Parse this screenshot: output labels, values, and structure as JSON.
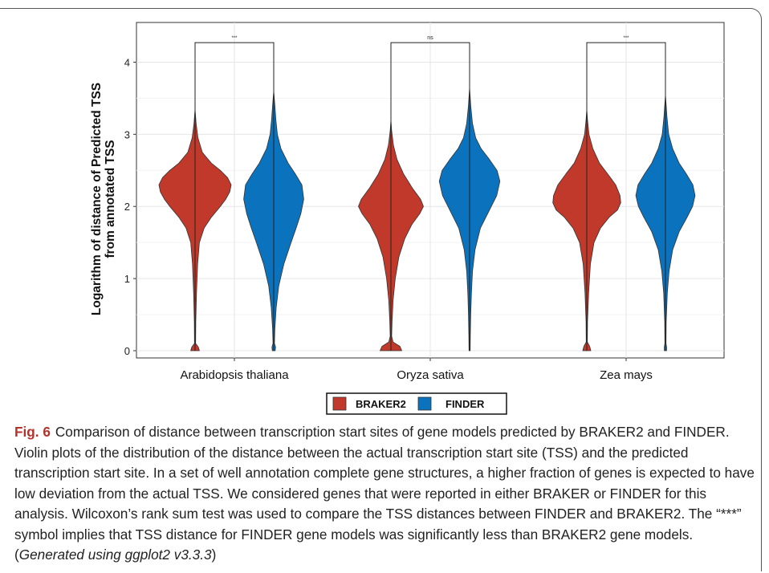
{
  "chart_data": {
    "type": "violin",
    "ylabel_line1": "Logarithm of distance of Predicted TSS",
    "ylabel_line2": "from annotated TSS",
    "xlabel": "",
    "ylim": [
      -0.1,
      4.55
    ],
    "yticks": [
      0,
      1,
      2,
      3,
      4
    ],
    "grid": true,
    "legend_position": "bottom",
    "categories": [
      "Arabidopsis thaliana",
      "Oryza sativa",
      "Zea mays"
    ],
    "series": [
      {
        "name": "BRAKER2",
        "color": "#c0392b"
      },
      {
        "name": "FINDER",
        "color": "#0b72bd"
      }
    ],
    "violins": [
      {
        "category": "Arabidopsis thaliana",
        "series": "BRAKER2",
        "min": 0,
        "max": 3.35,
        "profile": [
          [
            0.0,
            0.12
          ],
          [
            0.05,
            0.09
          ],
          [
            0.1,
            0.015
          ],
          [
            0.4,
            0.02
          ],
          [
            0.8,
            0.04
          ],
          [
            1.2,
            0.07
          ],
          [
            1.5,
            0.12
          ],
          [
            1.7,
            0.25
          ],
          [
            1.85,
            0.45
          ],
          [
            2.0,
            0.7
          ],
          [
            2.1,
            0.85
          ],
          [
            2.2,
            0.96
          ],
          [
            2.3,
            1.0
          ],
          [
            2.4,
            0.9
          ],
          [
            2.5,
            0.7
          ],
          [
            2.6,
            0.45
          ],
          [
            2.75,
            0.2
          ],
          [
            2.95,
            0.08
          ],
          [
            3.15,
            0.03
          ],
          [
            3.35,
            0.0
          ]
        ]
      },
      {
        "category": "Arabidopsis thaliana",
        "series": "FINDER",
        "min": 0,
        "max": 3.6,
        "profile": [
          [
            0.0,
            0.04
          ],
          [
            0.05,
            0.05
          ],
          [
            0.1,
            0.02
          ],
          [
            0.3,
            0.03
          ],
          [
            0.6,
            0.07
          ],
          [
            0.9,
            0.14
          ],
          [
            1.2,
            0.28
          ],
          [
            1.5,
            0.48
          ],
          [
            1.7,
            0.62
          ],
          [
            1.9,
            0.75
          ],
          [
            2.1,
            0.83
          ],
          [
            2.3,
            0.78
          ],
          [
            2.45,
            0.6
          ],
          [
            2.6,
            0.4
          ],
          [
            2.8,
            0.2
          ],
          [
            3.0,
            0.1
          ],
          [
            3.2,
            0.06
          ],
          [
            3.4,
            0.03
          ],
          [
            3.6,
            0.0
          ]
        ]
      },
      {
        "category": "Oryza sativa",
        "series": "BRAKER2",
        "min": 0,
        "max": 3.2,
        "profile": [
          [
            0.0,
            0.3
          ],
          [
            0.06,
            0.25
          ],
          [
            0.12,
            0.06
          ],
          [
            0.2,
            0.02
          ],
          [
            0.4,
            0.03
          ],
          [
            0.7,
            0.06
          ],
          [
            1.0,
            0.12
          ],
          [
            1.3,
            0.22
          ],
          [
            1.55,
            0.38
          ],
          [
            1.75,
            0.58
          ],
          [
            1.9,
            0.8
          ],
          [
            2.0,
            0.9
          ],
          [
            2.1,
            0.82
          ],
          [
            2.25,
            0.6
          ],
          [
            2.45,
            0.35
          ],
          [
            2.65,
            0.17
          ],
          [
            2.85,
            0.07
          ],
          [
            3.05,
            0.02
          ],
          [
            3.2,
            0.0
          ]
        ]
      },
      {
        "category": "Oryza sativa",
        "series": "FINDER",
        "min": 0,
        "max": 3.65,
        "profile": [
          [
            0.0,
            0.015
          ],
          [
            0.2,
            0.02
          ],
          [
            0.5,
            0.03
          ],
          [
            0.8,
            0.05
          ],
          [
            1.1,
            0.08
          ],
          [
            1.4,
            0.15
          ],
          [
            1.7,
            0.3
          ],
          [
            1.95,
            0.55
          ],
          [
            2.15,
            0.75
          ],
          [
            2.35,
            0.84
          ],
          [
            2.5,
            0.76
          ],
          [
            2.65,
            0.55
          ],
          [
            2.8,
            0.32
          ],
          [
            2.95,
            0.17
          ],
          [
            3.15,
            0.08
          ],
          [
            3.4,
            0.03
          ],
          [
            3.65,
            0.0
          ]
        ]
      },
      {
        "category": "Zea mays",
        "series": "BRAKER2",
        "min": 0,
        "max": 3.35,
        "profile": [
          [
            0.0,
            0.11
          ],
          [
            0.06,
            0.08
          ],
          [
            0.12,
            0.015
          ],
          [
            0.4,
            0.02
          ],
          [
            0.8,
            0.05
          ],
          [
            1.2,
            0.1
          ],
          [
            1.5,
            0.2
          ],
          [
            1.7,
            0.38
          ],
          [
            1.85,
            0.62
          ],
          [
            1.95,
            0.85
          ],
          [
            2.05,
            0.94
          ],
          [
            2.15,
            0.92
          ],
          [
            2.3,
            0.8
          ],
          [
            2.45,
            0.58
          ],
          [
            2.6,
            0.35
          ],
          [
            2.8,
            0.17
          ],
          [
            3.0,
            0.06
          ],
          [
            3.2,
            0.02
          ],
          [
            3.35,
            0.0
          ]
        ]
      },
      {
        "category": "Zea mays",
        "series": "FINDER",
        "min": 0,
        "max": 3.55,
        "profile": [
          [
            0.0,
            0.03
          ],
          [
            0.05,
            0.03
          ],
          [
            0.1,
            0.015
          ],
          [
            0.4,
            0.02
          ],
          [
            0.8,
            0.05
          ],
          [
            1.1,
            0.1
          ],
          [
            1.4,
            0.2
          ],
          [
            1.65,
            0.38
          ],
          [
            1.85,
            0.6
          ],
          [
            2.0,
            0.75
          ],
          [
            2.15,
            0.82
          ],
          [
            2.3,
            0.76
          ],
          [
            2.45,
            0.58
          ],
          [
            2.6,
            0.38
          ],
          [
            2.8,
            0.2
          ],
          [
            3.0,
            0.09
          ],
          [
            3.25,
            0.04
          ],
          [
            3.55,
            0.0
          ]
        ]
      }
    ],
    "significance": [
      {
        "category": "Arabidopsis thaliana",
        "label": "***",
        "y": 4.27
      },
      {
        "category": "Oryza sativa",
        "label": "ns",
        "y": 4.27
      },
      {
        "category": "Zea mays",
        "label": "***",
        "y": 4.27
      }
    ]
  },
  "caption": {
    "figure_label": "Fig. 6",
    "text": "Comparison of distance between transcription start sites of gene models predicted by BRAKER2 and FINDER. Violin plots of the distribution of the distance between the actual transcription start site (TSS) and the predicted transcription start site. In a set of well annotation complete gene structures, a higher fraction of genes is expected to have low deviation from the actual TSS. We considered genes that were reported in either BRAKER or FINDER for this analysis. Wilcoxon’s rank sum test was used to compare the TSS distances between FINDER and BRAKER2. The “***” symbol implies that TSS distance for FINDER gene models was significantly less than BRAKER2 gene models. (",
    "citation": "Generated using ggplot2 v3.3.3",
    "end": ")"
  }
}
